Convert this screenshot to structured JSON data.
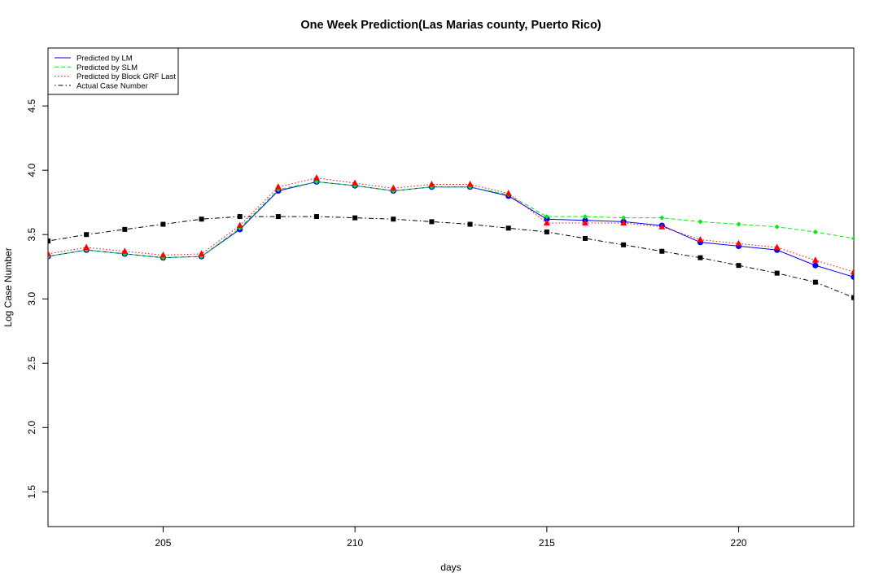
{
  "chart_data": {
    "type": "line",
    "title": "One Week Prediction(Las Marias county, Puerto Rico)",
    "xlabel": "days",
    "ylabel": "Log Case Number",
    "xlim": [
      202,
      223
    ],
    "ylim": [
      1.23,
      4.95
    ],
    "xticks": [
      205,
      210,
      215,
      220
    ],
    "yticks": [
      1.5,
      2.0,
      2.5,
      3.0,
      3.5,
      4.0,
      4.5
    ],
    "grid": false,
    "legend_position": "top-left",
    "x": [
      202,
      203,
      204,
      205,
      206,
      207,
      208,
      209,
      210,
      211,
      212,
      213,
      214,
      215,
      216,
      217,
      218,
      219,
      220,
      221,
      222,
      223
    ],
    "series": [
      {
        "name": "Predicted by LM",
        "color": "#0000ff",
        "line_style": "solid",
        "marker": "circle",
        "values": [
          3.33,
          3.38,
          3.35,
          3.32,
          3.33,
          3.54,
          3.84,
          3.91,
          3.88,
          3.84,
          3.87,
          3.87,
          3.8,
          3.62,
          3.61,
          3.6,
          3.57,
          3.44,
          3.41,
          3.38,
          3.26,
          3.17
        ]
      },
      {
        "name": "Predicted by SLM",
        "color": "#00ee00",
        "line_style": "dashed",
        "marker": "diamond",
        "values": [
          3.33,
          3.38,
          3.35,
          3.32,
          3.33,
          3.55,
          3.85,
          3.91,
          3.88,
          3.84,
          3.87,
          3.87,
          3.81,
          3.64,
          3.64,
          3.63,
          3.63,
          3.6,
          3.58,
          3.56,
          3.52,
          3.47
        ]
      },
      {
        "name": "Predicted by Block GRF Last",
        "color": "#ff0000",
        "line_style": "dotted",
        "marker": "triangle",
        "values": [
          3.35,
          3.4,
          3.37,
          3.34,
          3.35,
          3.57,
          3.87,
          3.94,
          3.9,
          3.86,
          3.89,
          3.89,
          3.82,
          3.59,
          3.59,
          3.59,
          3.56,
          3.46,
          3.43,
          3.4,
          3.3,
          3.21
        ]
      },
      {
        "name": "Actual Case Number",
        "color": "#000000",
        "line_style": "dotdash",
        "marker": "square",
        "values": [
          3.45,
          3.5,
          3.54,
          3.58,
          3.62,
          3.64,
          3.64,
          3.64,
          3.63,
          3.62,
          3.6,
          3.58,
          3.55,
          3.52,
          3.47,
          3.42,
          3.37,
          3.32,
          3.26,
          3.2,
          3.13,
          3.01
        ]
      }
    ]
  }
}
